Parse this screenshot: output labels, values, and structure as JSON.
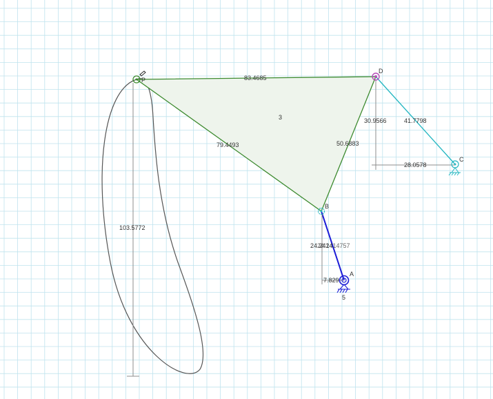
{
  "colors": {
    "grid": "#bfe3ee",
    "background": "#ffffff",
    "coupler": "#3c8a2e",
    "coupler_fill": "#eef4ec",
    "rocker": "#26b7c2",
    "crank": "#1c1cd6",
    "dimension": "#8c8c8c",
    "trace": "#555555",
    "joint_d": "#b84fb8"
  },
  "points": {
    "A": "A",
    "B": "B",
    "C": "C",
    "D": "D",
    "P": "P"
  },
  "links": {
    "coupler_label": "3",
    "crank_label": "5"
  },
  "dimensions": {
    "PD": "83.4685",
    "PB": "79.4493",
    "BD": "50.6883",
    "DC": "41.7798",
    "D_vertical": "30.9566",
    "C_horizontal": "28.0578",
    "P_vertical": "103.5772",
    "AB": "24.2414",
    "B_vertical": "24.2414757",
    "A_horizontal": "7.829"
  },
  "icons": [
    "pivot-marker-icon",
    "ground-icon",
    "joint-icon",
    "pen-icon"
  ]
}
